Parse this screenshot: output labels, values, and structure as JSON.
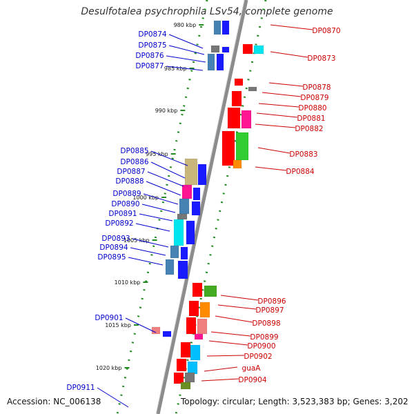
{
  "title": "Desulfotalea psychrophila LSv54, complete genome",
  "accession": "Accession: NC_006138",
  "summary": "Topology: circular; Length: 3,523,383 bp; Genes: 3,202",
  "colors": {
    "left_label": "#0000cc",
    "right_label": "#cc0000",
    "tick": "#228b22",
    "backbone": "#8c8c8c"
  },
  "scale_labels": [
    "980 kbp",
    "985 kbp",
    "990 kbp",
    "995 kbp",
    "1000 kbp",
    "1005 kbp",
    "1010 kbp",
    "1015 kbp",
    "1020 kbp"
  ],
  "left_genes": [
    "DP0874",
    "DP0875",
    "DP0876",
    "DP0877",
    "DP0885",
    "DP0886",
    "DP0887",
    "DP0888",
    "DP0889",
    "DP0890",
    "DP0891",
    "DP0892",
    "DP0893",
    "DP0894",
    "DP0895",
    "DP0901",
    "DP0911"
  ],
  "right_genes": [
    "DP0870",
    "DP0873",
    "DP0878",
    "DP0879",
    "DP0880",
    "DP0881",
    "DP0882",
    "DP0883",
    "DP0884",
    "DP0896",
    "DP0897",
    "DP0898",
    "DP0899",
    "DP0900",
    "DP0902",
    "guaA",
    "DP0904"
  ]
}
